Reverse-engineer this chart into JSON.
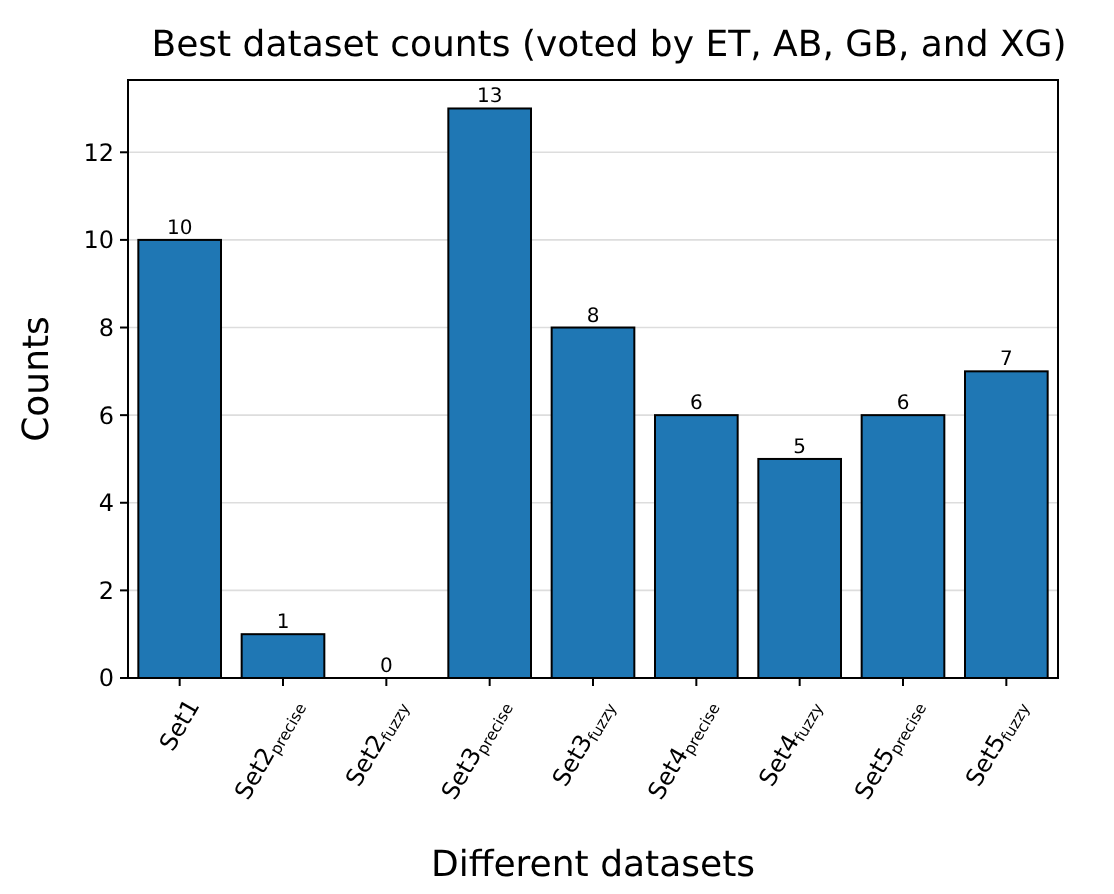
{
  "chart_data": {
    "type": "bar",
    "title": "Best dataset counts (voted by ET, AB, GB, and XG)",
    "xlabel": "Different datasets",
    "ylabel": "Counts",
    "categories": [
      "Set1",
      "Set2$_{precise}$",
      "Set2$_{fuzzy}$",
      "Set3$_{precise}$",
      "Set3$_{fuzzy}$",
      "Set4$_{precise}$",
      "Set4$_{fuzzy}$",
      "Set5$_{precise}$",
      "Set5$_{fuzzy}$"
    ],
    "values": [
      10,
      1,
      0,
      13,
      8,
      6,
      5,
      6,
      7
    ],
    "color": "#1f77b4",
    "ylim": [
      0,
      13.65
    ],
    "yticks": [
      0,
      2,
      4,
      6,
      8,
      10,
      12
    ],
    "grid": "y",
    "data_labels": true
  }
}
